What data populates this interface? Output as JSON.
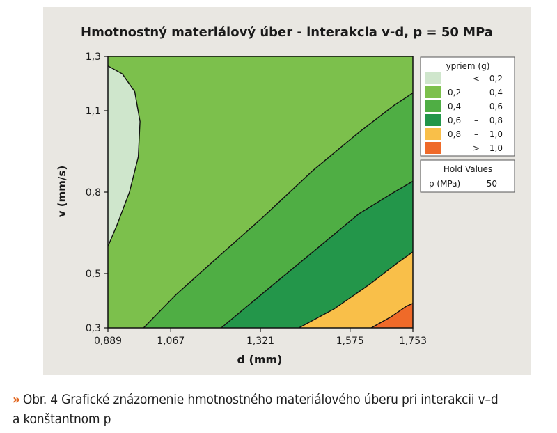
{
  "chart_data": {
    "type": "contour",
    "title": "Hmotnostný materiálový úber - interakcia v-d, p = 50 MPa",
    "xlabel": "d (mm)",
    "ylabel": "v (mm/s)",
    "xlim": [
      0.889,
      1.753
    ],
    "ylim": [
      0.3,
      1.3
    ],
    "x_ticks": [
      "0,889",
      "1,067",
      "1,321",
      "1,575",
      "1,753"
    ],
    "x_tick_values": [
      0.889,
      1.067,
      1.321,
      1.575,
      1.753
    ],
    "y_ticks": [
      "0,3",
      "0,5",
      "0,8",
      "1,1",
      "1,3"
    ],
    "y_tick_values": [
      0.3,
      0.5,
      0.8,
      1.1,
      1.3
    ],
    "legend_title": "ypriem (g)",
    "legend_placement": "right",
    "levels": [
      {
        "from": "",
        "sep": "<",
        "to": "0,2",
        "color": "#cfe6cc"
      },
      {
        "from": "0,2",
        "sep": "–",
        "to": "0,4",
        "color": "#7cc04c"
      },
      {
        "from": "0,4",
        "sep": "–",
        "to": "0,6",
        "color": "#4fae44"
      },
      {
        "from": "0,6",
        "sep": "–",
        "to": "0,8",
        "color": "#23964a"
      },
      {
        "from": "0,8",
        "sep": "–",
        "to": "1,0",
        "color": "#f9bf49"
      },
      {
        "from": "",
        "sep": ">",
        "to": "1,0",
        "color": "#ef6a29"
      }
    ],
    "contours": [
      {
        "level": 0.2,
        "points": [
          [
            0.889,
            1.265
          ],
          [
            0.93,
            1.235
          ],
          [
            0.965,
            1.17
          ],
          [
            0.98,
            1.06
          ],
          [
            0.975,
            0.93
          ],
          [
            0.95,
            0.8
          ],
          [
            0.915,
            0.68
          ],
          [
            0.889,
            0.6
          ]
        ]
      },
      {
        "level": 0.4,
        "points": [
          [
            0.99,
            0.3
          ],
          [
            1.08,
            0.42
          ],
          [
            1.2,
            0.56
          ],
          [
            1.33,
            0.71
          ],
          [
            1.47,
            0.88
          ],
          [
            1.6,
            1.02
          ],
          [
            1.7,
            1.12
          ],
          [
            1.753,
            1.165
          ]
        ]
      },
      {
        "level": 0.6,
        "points": [
          [
            1.21,
            0.3
          ],
          [
            1.33,
            0.43
          ],
          [
            1.47,
            0.58
          ],
          [
            1.6,
            0.72
          ],
          [
            1.7,
            0.8
          ],
          [
            1.753,
            0.84
          ]
        ]
      },
      {
        "level": 0.8,
        "points": [
          [
            1.43,
            0.3
          ],
          [
            1.53,
            0.37
          ],
          [
            1.63,
            0.46
          ],
          [
            1.71,
            0.54
          ],
          [
            1.753,
            0.58
          ]
        ]
      },
      {
        "level": 1.0,
        "points": [
          [
            1.635,
            0.3
          ],
          [
            1.69,
            0.34
          ],
          [
            1.735,
            0.38
          ],
          [
            1.753,
            0.39
          ]
        ]
      }
    ],
    "hold_values": {
      "title": "Hold Values",
      "label": "p (MPa)",
      "value": "50"
    }
  },
  "caption": {
    "marker": "»",
    "line1": "Obr. 4 Grafické znázornenie hmotnostného materiálového úberu pri interakcii v–d",
    "line2": "a konštantnom p"
  }
}
